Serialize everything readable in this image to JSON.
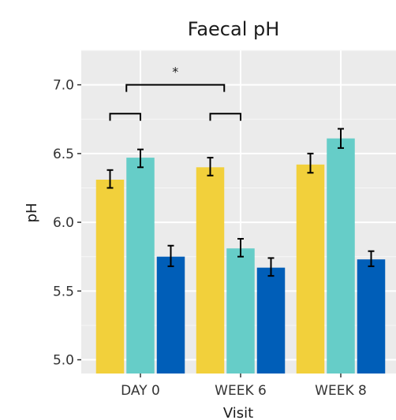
{
  "chart_data": {
    "type": "bar",
    "title": "Faecal pH",
    "xlabel": "Visit",
    "ylabel": "pH",
    "categories": [
      "DAY 0",
      "WEEK 6",
      "WEEK 8"
    ],
    "ylim": [
      4.9,
      7.25
    ],
    "yticks": [
      5.0,
      5.5,
      6.0,
      6.5,
      7.0
    ],
    "ytick_labels": [
      "5.0",
      "5.5",
      "6.0",
      "6.5",
      "7.0"
    ],
    "grid": true,
    "legend": "none",
    "series": [
      {
        "color": "#F2D03B",
        "values": [
          6.31,
          6.4,
          6.42
        ],
        "err_low": [
          6.25,
          6.34,
          6.36
        ],
        "err_high": [
          6.38,
          6.47,
          6.5
        ]
      },
      {
        "color": "#66CDC8",
        "values": [
          6.47,
          5.81,
          6.61
        ],
        "err_low": [
          6.4,
          5.75,
          6.54
        ],
        "err_high": [
          6.53,
          5.88,
          6.68
        ]
      },
      {
        "color": "#005EB8",
        "values": [
          5.75,
          5.67,
          5.73
        ],
        "err_low": [
          5.68,
          5.61,
          5.68
        ],
        "err_high": [
          5.83,
          5.74,
          5.79
        ]
      }
    ],
    "significance": {
      "label": "*",
      "brackets": [
        {
          "category": "DAY 0",
          "series": [
            0,
            1
          ],
          "y": 6.79
        },
        {
          "category": "WEEK 6",
          "series": [
            0,
            1
          ],
          "y": 6.79
        },
        {
          "categories": [
            "DAY 0",
            "WEEK 6"
          ],
          "y": 7.0,
          "label": true
        }
      ]
    }
  }
}
